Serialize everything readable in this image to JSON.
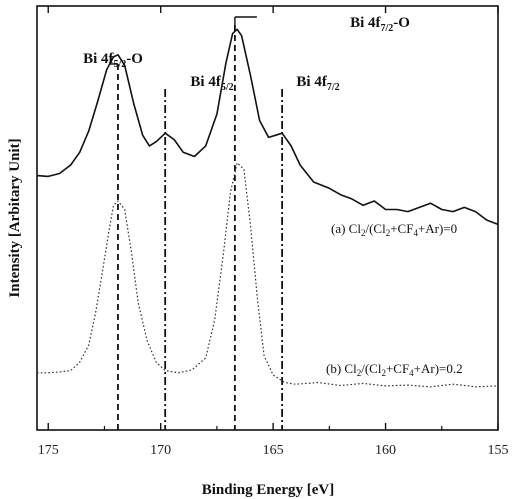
{
  "chart_data": {
    "type": "line",
    "xlabel": "Binding Energy [eV]",
    "ylabel": "Intensity [Arbitary Unit]",
    "xlim": [
      175.5,
      155
    ],
    "x_reversed": true,
    "xticks": [
      175,
      170,
      165,
      160,
      155
    ],
    "ylim": [
      0,
      1
    ],
    "yticks_shown": false,
    "grid": false,
    "peak_annotations": [
      {
        "base": "Bi 4f",
        "sub": "5/2",
        "suffix": "-O",
        "x": 171.9,
        "style": "dashed"
      },
      {
        "base": "Bi 4f",
        "sub": "5/2",
        "suffix": "",
        "x": 169.8,
        "style": "dash-dot"
      },
      {
        "base": "Bi 4f",
        "sub": "7/2",
        "suffix": "-O",
        "x": 166.7,
        "style": "dashed"
      },
      {
        "base": "Bi 4f",
        "sub": "7/2",
        "suffix": "",
        "x": 164.6,
        "style": "dash-dot"
      }
    ],
    "series": [
      {
        "label_parts": [
          "(a) Cl",
          "2",
          "/(Cl",
          "2",
          "+CF",
          "4",
          "+Ar)=0"
        ],
        "style": "solid",
        "x": [
          175.5,
          175,
          174.5,
          174,
          173.6,
          173.2,
          172.8,
          172.4,
          172.1,
          171.9,
          171.6,
          171.2,
          170.8,
          170.5,
          170.2,
          169.8,
          169.4,
          169.0,
          168.5,
          168.0,
          167.5,
          167.1,
          166.8,
          166.6,
          166.4,
          166.0,
          165.6,
          165.2,
          164.9,
          164.6,
          164.2,
          163.8,
          163.2,
          162.5,
          162,
          161.5,
          161,
          160.5,
          160,
          159.5,
          159,
          158.5,
          158,
          157.5,
          157,
          156.5,
          156,
          155.5,
          155
        ],
        "y": [
          0.6,
          0.598,
          0.605,
          0.625,
          0.655,
          0.705,
          0.775,
          0.85,
          0.88,
          0.885,
          0.86,
          0.77,
          0.695,
          0.67,
          0.68,
          0.7,
          0.685,
          0.655,
          0.645,
          0.67,
          0.745,
          0.865,
          0.935,
          0.945,
          0.93,
          0.835,
          0.73,
          0.69,
          0.695,
          0.7,
          0.67,
          0.625,
          0.585,
          0.57,
          0.555,
          0.545,
          0.53,
          0.54,
          0.52,
          0.52,
          0.515,
          0.525,
          0.535,
          0.52,
          0.515,
          0.525,
          0.515,
          0.495,
          0.485
        ]
      },
      {
        "label_parts": [
          "(b) Cl",
          "2",
          "/(Cl",
          "2",
          "+CF",
          "4",
          "+Ar)=0.2"
        ],
        "style": "dotted",
        "x": [
          175.5,
          175,
          174.5,
          174,
          173.6,
          173.2,
          172.9,
          172.6,
          172.3,
          172.1,
          171.9,
          171.6,
          171.3,
          171.0,
          170.6,
          170.2,
          169.8,
          169.2,
          168.6,
          168.0,
          167.6,
          167.2,
          166.9,
          166.6,
          166.3,
          166.0,
          165.7,
          165.4,
          165.0,
          164.5,
          164,
          163.5,
          163,
          162,
          161,
          160,
          159,
          158,
          157,
          156,
          155
        ],
        "y": [
          0.135,
          0.135,
          0.137,
          0.14,
          0.16,
          0.2,
          0.275,
          0.37,
          0.47,
          0.53,
          0.54,
          0.52,
          0.42,
          0.3,
          0.21,
          0.16,
          0.14,
          0.135,
          0.142,
          0.17,
          0.26,
          0.42,
          0.56,
          0.63,
          0.615,
          0.48,
          0.31,
          0.175,
          0.13,
          0.112,
          0.108,
          0.11,
          0.112,
          0.105,
          0.11,
          0.104,
          0.106,
          0.102,
          0.108,
          0.102,
          0.104
        ]
      }
    ]
  }
}
